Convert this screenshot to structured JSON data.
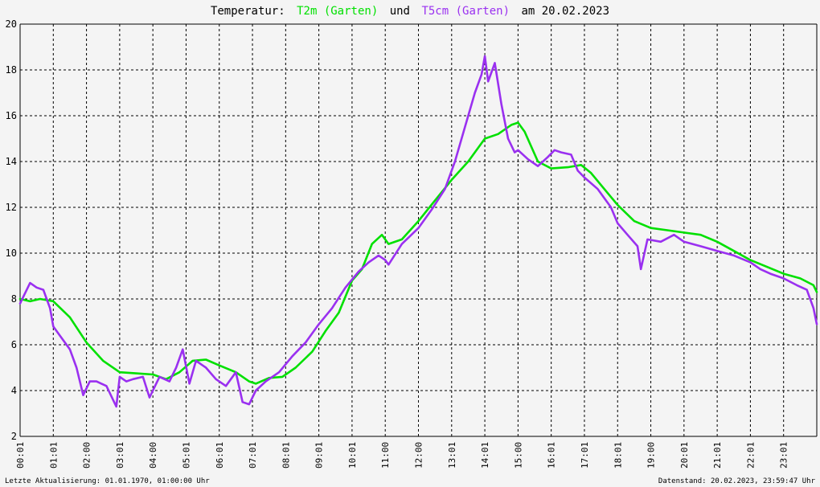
{
  "title": {
    "prefix": "Temperatur:",
    "series1_label": "T2m (Garten)",
    "conjunction": "und",
    "series2_label": "T5cm (Garten)",
    "suffix": "am 20.02.2023"
  },
  "footer": {
    "left": "Letzte Aktualisierung: 01.01.1970, 01:00:00 Uhr",
    "right": "Datenstand: 20.02.2023, 23:59:47 Uhr"
  },
  "colors": {
    "background": "#f4f4f4",
    "t2m": "#00e000",
    "t5cm": "#9a30f0",
    "grid": "#000000"
  },
  "chart_data": {
    "type": "line",
    "title": "Temperatur: T2m (Garten) und T5cm (Garten) am 20.02.2023",
    "xlabel": "",
    "ylabel": "",
    "ylim": [
      2,
      20
    ],
    "xlim": [
      0,
      24
    ],
    "y_ticks": [
      "2",
      "4",
      "6",
      "8",
      "10",
      "12",
      "14",
      "16",
      "18",
      "20"
    ],
    "x_ticks": [
      "00:01",
      "01:01",
      "02:00",
      "03:01",
      "04:00",
      "05:01",
      "06:01",
      "07:01",
      "08:01",
      "09:01",
      "10:01",
      "11:00",
      "12:00",
      "13:01",
      "14:01",
      "15:00",
      "16:01",
      "17:01",
      "18:01",
      "19:00",
      "20:01",
      "21:01",
      "22:01",
      "23:01"
    ],
    "grid": true,
    "series": [
      {
        "name": "T2m (Garten)",
        "color": "#00e000",
        "x": [
          0,
          0.3,
          0.6,
          1.0,
          1.5,
          2.0,
          2.5,
          3.0,
          3.5,
          4.0,
          4.4,
          4.8,
          5.2,
          5.6,
          6.0,
          6.5,
          6.9,
          7.1,
          7.5,
          7.9,
          8.3,
          8.8,
          9.2,
          9.6,
          10.0,
          10.3,
          10.6,
          10.9,
          11.1,
          11.5,
          12.0,
          12.5,
          13.0,
          13.5,
          14.0,
          14.4,
          14.8,
          15.0,
          15.2,
          15.6,
          16.0,
          16.5,
          16.9,
          17.2,
          17.6,
          18.0,
          18.5,
          19.0,
          19.5,
          20.0,
          20.5,
          21.0,
          21.5,
          22.0,
          22.5,
          23.0,
          23.5,
          23.9,
          24.0
        ],
        "y": [
          8.0,
          7.9,
          8.0,
          7.9,
          7.2,
          6.1,
          5.3,
          4.8,
          4.75,
          4.7,
          4.5,
          4.8,
          5.3,
          5.35,
          5.1,
          4.8,
          4.4,
          4.3,
          4.55,
          4.6,
          5.0,
          5.7,
          6.6,
          7.4,
          8.8,
          9.3,
          10.4,
          10.8,
          10.4,
          10.6,
          11.4,
          12.3,
          13.2,
          14.0,
          15.0,
          15.2,
          15.6,
          15.7,
          15.3,
          14.0,
          13.7,
          13.75,
          13.85,
          13.5,
          12.8,
          12.1,
          11.4,
          11.1,
          11.0,
          10.9,
          10.8,
          10.5,
          10.1,
          9.7,
          9.4,
          9.1,
          8.9,
          8.6,
          8.3
        ]
      },
      {
        "name": "T5cm (Garten)",
        "color": "#9a30f0",
        "x": [
          0,
          0.1,
          0.3,
          0.5,
          0.7,
          0.9,
          1.0,
          1.2,
          1.5,
          1.7,
          1.9,
          2.1,
          2.3,
          2.6,
          2.8,
          2.9,
          3.0,
          3.2,
          3.4,
          3.7,
          3.9,
          4.2,
          4.5,
          4.7,
          4.9,
          5.1,
          5.3,
          5.6,
          5.9,
          6.2,
          6.5,
          6.7,
          6.9,
          7.1,
          7.4,
          7.8,
          8.2,
          8.6,
          9.0,
          9.4,
          9.8,
          10.2,
          10.5,
          10.8,
          11.0,
          11.1,
          11.5,
          12.0,
          12.4,
          12.8,
          13.1,
          13.4,
          13.7,
          13.9,
          14.0,
          14.1,
          14.3,
          14.5,
          14.7,
          14.9,
          15.0,
          15.3,
          15.6,
          15.9,
          16.1,
          16.3,
          16.6,
          16.8,
          17.0,
          17.4,
          17.8,
          18.0,
          18.3,
          18.6,
          18.7,
          18.9,
          19.3,
          19.7,
          20.0,
          20.5,
          21.0,
          21.5,
          22.0,
          22.3,
          22.6,
          23.0,
          23.4,
          23.7,
          23.9,
          24.0
        ],
        "y": [
          7.8,
          8.1,
          8.7,
          8.5,
          8.4,
          7.6,
          6.8,
          6.4,
          5.8,
          5.0,
          3.8,
          4.4,
          4.4,
          4.2,
          3.6,
          3.3,
          4.6,
          4.4,
          4.5,
          4.6,
          3.7,
          4.6,
          4.4,
          5.0,
          5.8,
          4.3,
          5.3,
          5.0,
          4.5,
          4.2,
          4.8,
          3.5,
          3.4,
          4.0,
          4.4,
          4.8,
          5.5,
          6.1,
          6.9,
          7.6,
          8.5,
          9.2,
          9.6,
          9.9,
          9.7,
          9.5,
          10.4,
          11.1,
          11.9,
          12.8,
          14.0,
          15.5,
          17.0,
          17.8,
          18.6,
          17.5,
          18.3,
          16.5,
          15.0,
          14.4,
          14.5,
          14.1,
          13.8,
          14.2,
          14.5,
          14.4,
          14.3,
          13.6,
          13.3,
          12.8,
          12.0,
          11.3,
          10.8,
          10.3,
          9.3,
          10.6,
          10.5,
          10.8,
          10.5,
          10.3,
          10.1,
          9.9,
          9.6,
          9.3,
          9.1,
          8.9,
          8.6,
          8.4,
          7.6,
          6.9
        ]
      }
    ]
  }
}
